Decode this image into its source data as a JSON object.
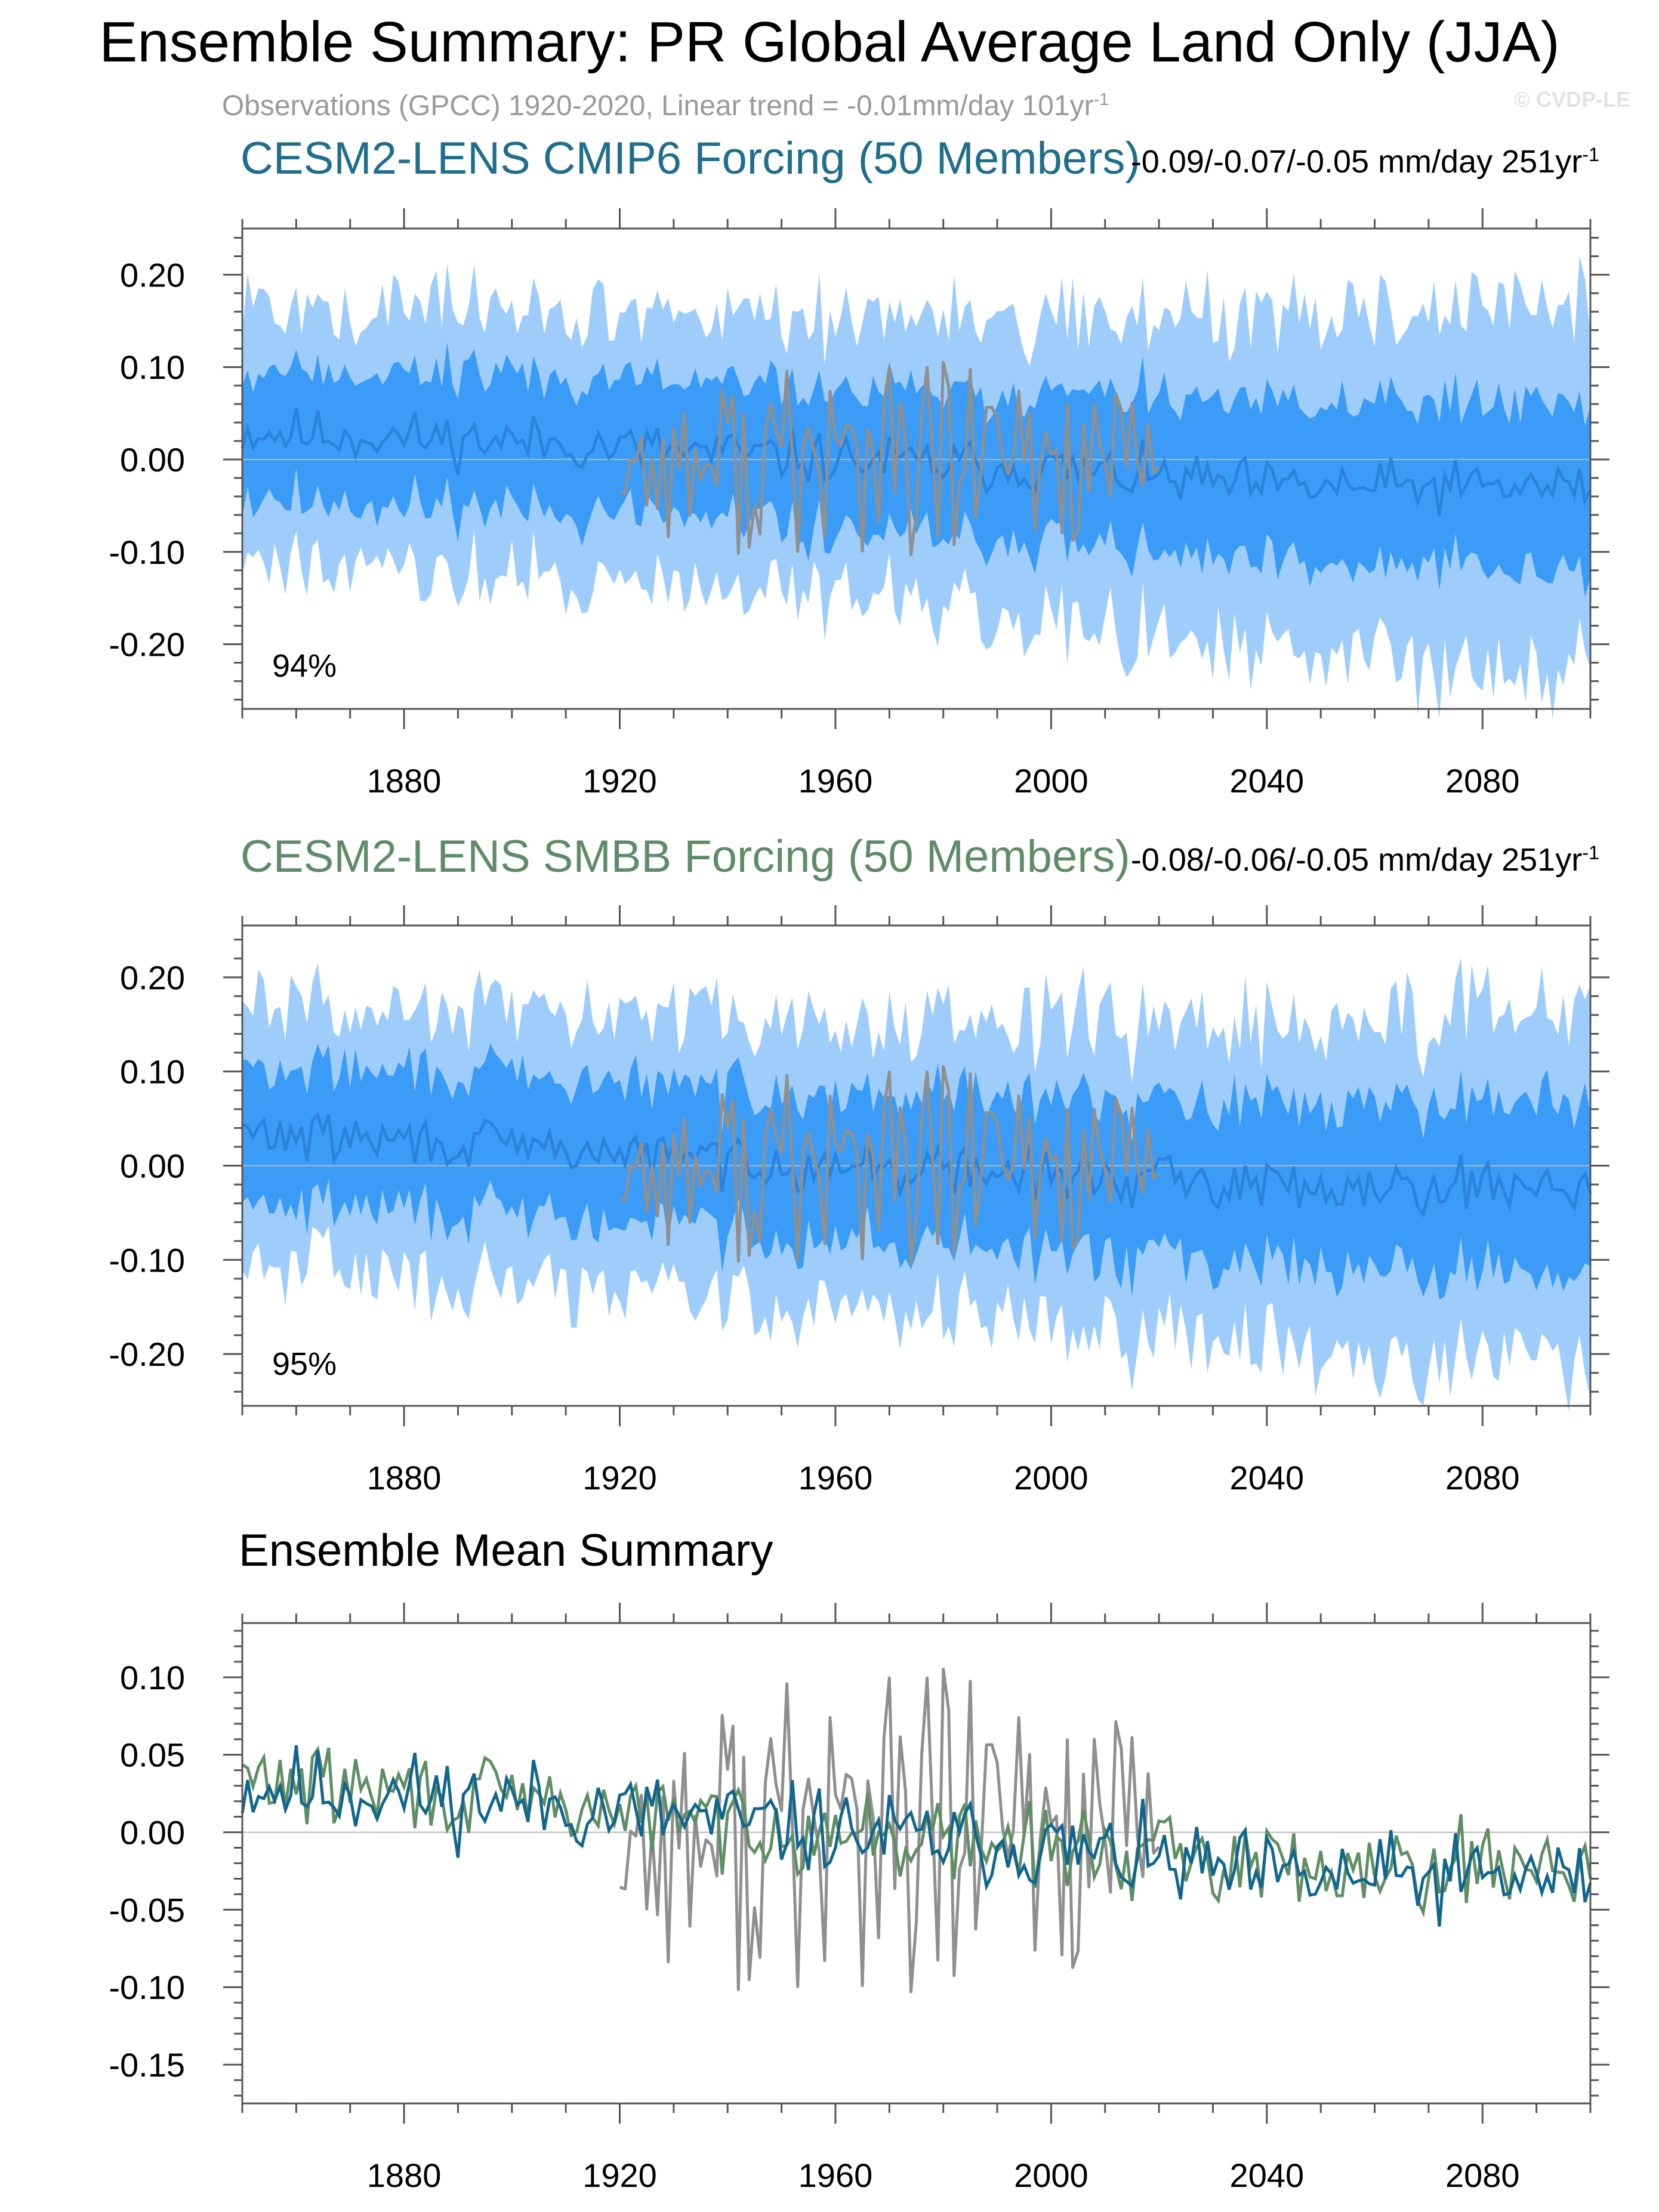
{
  "title": "Ensemble Summary: PR Global Average Land Only (JJA)",
  "subtitle": {
    "text": "Observations (GPCC) 1920-2020, Linear trend = -0.01mm/day 101yr",
    "superscript": "-1"
  },
  "watermark": "© CVDP-LE",
  "colors": {
    "cmip6_title": "#1f6e8c",
    "smbb_title": "#5f8c66",
    "band_outer": "#9fcdfb",
    "band_inner": "#3a9cf6",
    "ens_mean_line": "#2a83dc",
    "observations": "#8f8f8f",
    "cmip6_mean": "#11668e",
    "smbb_mean": "#608e63"
  },
  "panels": {
    "cmip6": {
      "title": "CESM2-LENS CMIP6 Forcing (50 Members)",
      "trend_text": "-0.09/-0.07/-0.05 mm/day 251yr",
      "trend_sup": "-1",
      "percent": "94%"
    },
    "smbb": {
      "title": "CESM2-LENS SMBB Forcing (50 Members)",
      "trend_text": "-0.08/-0.06/-0.05 mm/day 251yr",
      "trend_sup": "-1",
      "percent": "95%"
    },
    "mean": {
      "title": "Ensemble Mean Summary"
    }
  },
  "chart_data": [
    {
      "type": "area",
      "id": "cmip6",
      "title": "CESM2-LENS CMIP6 Forcing (50 Members)",
      "xlim": [
        1850,
        2100
      ],
      "ylim": [
        -0.27,
        0.25
      ],
      "x_ticks": [
        1880,
        1920,
        1960,
        2000,
        2040,
        2080
      ],
      "y_ticks": [
        0.2,
        0.1,
        0.0,
        -0.1,
        -0.2
      ],
      "y_tick_labels": [
        "0.20",
        "0.10",
        "0.00",
        "-0.10",
        "-0.20"
      ],
      "zero_line": true,
      "mean_anchors": [
        [
          1850,
          0.03
        ],
        [
          1900,
          0.02
        ],
        [
          1960,
          0.0
        ],
        [
          2000,
          -0.01
        ],
        [
          2040,
          -0.03
        ],
        [
          2100,
          -0.03
        ]
      ],
      "band_inner_halfwidth": [
        [
          1850,
          0.07
        ],
        [
          1960,
          0.075
        ],
        [
          2100,
          0.09
        ]
      ],
      "band_outer_halfwidth": [
        [
          1850,
          0.13
        ],
        [
          1960,
          0.14
        ],
        [
          2100,
          0.19
        ]
      ],
      "obs_years": [
        1920,
        2020
      ],
      "percent": "94%"
    },
    {
      "type": "area",
      "id": "smbb",
      "title": "CESM2-LENS SMBB Forcing (50 Members)",
      "xlim": [
        1850,
        2100
      ],
      "ylim": [
        -0.255,
        0.255
      ],
      "x_ticks": [
        1880,
        1920,
        1960,
        2000,
        2040,
        2080
      ],
      "y_ticks": [
        0.2,
        0.1,
        0.0,
        -0.1,
        -0.2
      ],
      "y_tick_labels": [
        "0.20",
        "0.10",
        "0.00",
        "-0.10",
        "-0.20"
      ],
      "zero_line": true,
      "mean_anchors": [
        [
          1850,
          0.035
        ],
        [
          1900,
          0.02
        ],
        [
          1960,
          0.0
        ],
        [
          2000,
          -0.01
        ],
        [
          2040,
          -0.02
        ],
        [
          2100,
          -0.02
        ]
      ],
      "band_inner_halfwidth": [
        [
          1850,
          0.07
        ],
        [
          1960,
          0.075
        ],
        [
          2100,
          0.09
        ]
      ],
      "band_outer_halfwidth": [
        [
          1850,
          0.13
        ],
        [
          1960,
          0.14
        ],
        [
          2100,
          0.18
        ]
      ],
      "obs_years": [
        1920,
        2020
      ],
      "percent": "95%"
    },
    {
      "type": "line",
      "id": "mean",
      "title": "Ensemble Mean Summary",
      "xlim": [
        1850,
        2100
      ],
      "ylim": [
        -0.175,
        0.135
      ],
      "x_ticks": [
        1880,
        1920,
        1960,
        2000,
        2040,
        2080
      ],
      "y_ticks": [
        0.1,
        0.05,
        0.0,
        -0.05,
        -0.1,
        -0.15
      ],
      "y_tick_labels": [
        "0.10",
        "0.05",
        "0.00",
        "-0.05",
        "-0.10",
        "-0.15"
      ],
      "zero_line": true,
      "series": [
        {
          "key": "cmip6",
          "mean_anchors": [
            [
              1850,
              0.03
            ],
            [
              1900,
              0.02
            ],
            [
              1960,
              0.0
            ],
            [
              2000,
              -0.01
            ],
            [
              2040,
              -0.03
            ],
            [
              2100,
              -0.03
            ]
          ]
        },
        {
          "key": "smbb",
          "mean_anchors": [
            [
              1850,
              0.035
            ],
            [
              1900,
              0.02
            ],
            [
              1960,
              0.0
            ],
            [
              2000,
              -0.01
            ],
            [
              2040,
              -0.02
            ],
            [
              2100,
              -0.02
            ]
          ]
        },
        {
          "key": "obs",
          "years": [
            1920,
            2020
          ]
        }
      ]
    }
  ]
}
